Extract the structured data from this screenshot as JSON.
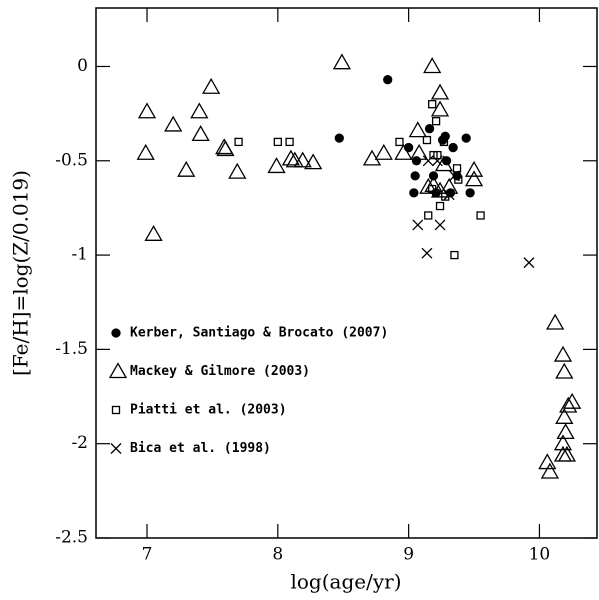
{
  "chart_data": {
    "type": "scatter",
    "x_label": "log(age/yr)",
    "y_label": "[Fe/H]=log(Z/0.019)",
    "xlim": [
      6.61,
      10.44
    ],
    "ylim": [
      -2.5,
      0.31
    ],
    "xticks": [
      7,
      8,
      9,
      10
    ],
    "yticks": [
      0,
      -0.5,
      -1,
      -1.5,
      -2,
      -2.5
    ],
    "legend": "lower left",
    "series": [
      {
        "name": "Kerber, Santiago & Brocato (2007)",
        "marker": "circle",
        "color": "#000000",
        "x": [
          8.84,
          8.47,
          9.0,
          9.06,
          9.05,
          9.04,
          9.16,
          9.19,
          9.21,
          9.28,
          9.29,
          9.32,
          9.34,
          9.44,
          9.47,
          9.37,
          9.26
        ],
        "values": [
          -0.07,
          -0.38,
          -0.43,
          -0.5,
          -0.58,
          -0.67,
          -0.33,
          -0.58,
          -0.67,
          -0.37,
          -0.5,
          -0.67,
          -0.43,
          -0.38,
          -0.67,
          -0.58,
          -0.39
        ]
      },
      {
        "name": "Mackey & Gilmore (2003)",
        "marker": "triangle",
        "color": "#000000",
        "x": [
          7.0,
          6.99,
          7.2,
          7.3,
          7.4,
          7.41,
          7.49,
          7.05,
          7.59,
          7.6,
          7.69,
          7.99,
          8.1,
          8.13,
          8.19,
          8.27,
          8.49,
          8.72,
          8.81,
          8.96,
          9.07,
          9.08,
          9.18,
          9.24,
          9.24,
          9.15,
          9.19,
          9.24,
          9.27,
          9.31,
          9.5,
          9.5,
          10.12,
          10.18,
          10.19,
          10.22,
          10.19,
          10.2,
          10.18,
          10.18,
          10.21,
          10.06,
          10.08,
          10.25
        ],
        "values": [
          -0.24,
          -0.46,
          -0.31,
          -0.55,
          -0.24,
          -0.36,
          -0.11,
          -0.89,
          -0.43,
          -0.44,
          -0.56,
          -0.53,
          -0.49,
          -0.5,
          -0.5,
          -0.51,
          0.02,
          -0.49,
          -0.46,
          -0.46,
          -0.34,
          -0.46,
          0.0,
          -0.14,
          -0.23,
          -0.64,
          -0.63,
          -0.66,
          -0.52,
          -0.64,
          -0.55,
          -0.6,
          -1.36,
          -1.53,
          -1.62,
          -1.8,
          -1.86,
          -1.94,
          -2.0,
          -2.06,
          -2.06,
          -2.1,
          -2.15,
          -1.78
        ]
      },
      {
        "name": "Piatti et al. (2003)",
        "marker": "square",
        "color": "#000000",
        "x": [
          7.7,
          8.0,
          8.09,
          8.93,
          9.18,
          9.21,
          9.14,
          9.27,
          9.19,
          9.37,
          9.18,
          9.24,
          9.28,
          9.15,
          9.35,
          9.55,
          9.22,
          9.38
        ],
        "values": [
          -0.4,
          -0.4,
          -0.4,
          -0.4,
          -0.2,
          -0.29,
          -0.39,
          -0.4,
          -0.47,
          -0.54,
          -0.65,
          -0.74,
          -0.69,
          -0.79,
          -1.0,
          -0.79,
          -0.47,
          -0.6
        ]
      },
      {
        "name": "Bica et al. (1998)",
        "marker": "x",
        "color": "#000000",
        "x": [
          9.07,
          9.24,
          9.14,
          9.15,
          9.22,
          9.31,
          9.92,
          9.35
        ],
        "values": [
          -0.84,
          -0.84,
          -0.99,
          -0.5,
          -0.5,
          -0.68,
          -1.04,
          -0.58
        ]
      }
    ]
  }
}
